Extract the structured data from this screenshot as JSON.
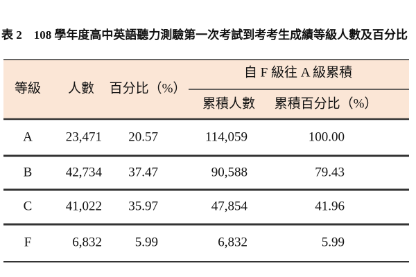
{
  "title": "表 2　108 學年度高中英語聽力測驗第一次考試到考考生成績等級人數及百分比",
  "table": {
    "header": [
      "等級",
      "人數",
      "百分比（%）",
      "自 F 級往 A 級累積"
    ],
    "subheader": [
      "累積人數",
      "累積百分比（%）"
    ],
    "rows": [
      [
        "A",
        "23,471",
        "20.57",
        "114,059",
        "100.00"
      ],
      [
        "B",
        "42,734",
        "37.47",
        "90,588",
        "79.43"
      ],
      [
        "C",
        "41,022",
        "35.97",
        "47,854",
        "41.96"
      ],
      [
        "F",
        "6,832",
        "5.99",
        "6,832",
        "5.99"
      ]
    ]
  }
}
